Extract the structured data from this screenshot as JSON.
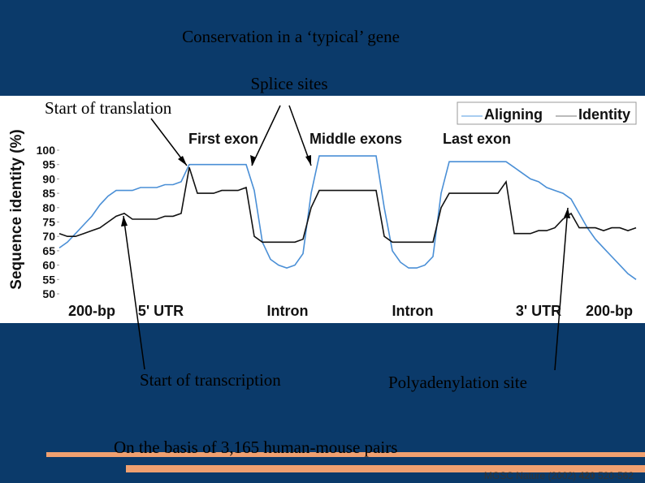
{
  "chart_data": {
    "type": "line",
    "title": "Conservation in a ‘typical’ gene",
    "ylabel": "Sequence identity (%)",
    "ylim": [
      50,
      100
    ],
    "yticks": [
      50,
      55,
      60,
      65,
      70,
      75,
      80,
      85,
      90,
      95,
      100
    ],
    "legend": "upper right",
    "region_labels_top": [
      "First exon",
      "Middle exons",
      "Last exon"
    ],
    "region_labels_bottom": [
      "200-bp",
      "5' UTR",
      "Intron",
      "Intron",
      "3' UTR",
      "200-bp"
    ],
    "annotations": [
      "Splice sites",
      "Start of translation",
      "Start of transcription",
      "Polyadenylation site"
    ],
    "note": "On the basis of 3,165 human-mouse pairs",
    "citation": [
      "MGSC Nature (2002)",
      "420",
      "520-562"
    ],
    "series": [
      {
        "name": "Aligning",
        "color": "#4a8fd6",
        "values": [
          66,
          68,
          71,
          74,
          77,
          81,
          84,
          86,
          86,
          86,
          87,
          87,
          87,
          88,
          88,
          89,
          95,
          95,
          95,
          95,
          95,
          95,
          95,
          95,
          86,
          68,
          62,
          60,
          59,
          60,
          64,
          85,
          98,
          98,
          98,
          98,
          98,
          98,
          98,
          98,
          80,
          65,
          61,
          59,
          59,
          60,
          63,
          85,
          96,
          96,
          96,
          96,
          96,
          96,
          96,
          96,
          94,
          92,
          90,
          89,
          87,
          86,
          85,
          83,
          78,
          73,
          69,
          66,
          63,
          60,
          57,
          55
        ]
      },
      {
        "name": "Identity",
        "color": "#111111",
        "values": [
          71,
          70,
          70,
          71,
          72,
          73,
          75,
          77,
          78,
          76,
          76,
          76,
          76,
          77,
          77,
          78,
          94,
          85,
          85,
          85,
          86,
          86,
          86,
          87,
          70,
          68,
          68,
          68,
          68,
          68,
          69,
          80,
          86,
          86,
          86,
          86,
          86,
          86,
          86,
          86,
          70,
          68,
          68,
          68,
          68,
          68,
          68,
          80,
          85,
          85,
          85,
          85,
          85,
          85,
          85,
          89,
          71,
          71,
          71,
          72,
          72,
          73,
          76,
          78,
          73,
          73,
          73,
          72,
          73,
          73,
          72,
          73
        ]
      }
    ]
  }
}
